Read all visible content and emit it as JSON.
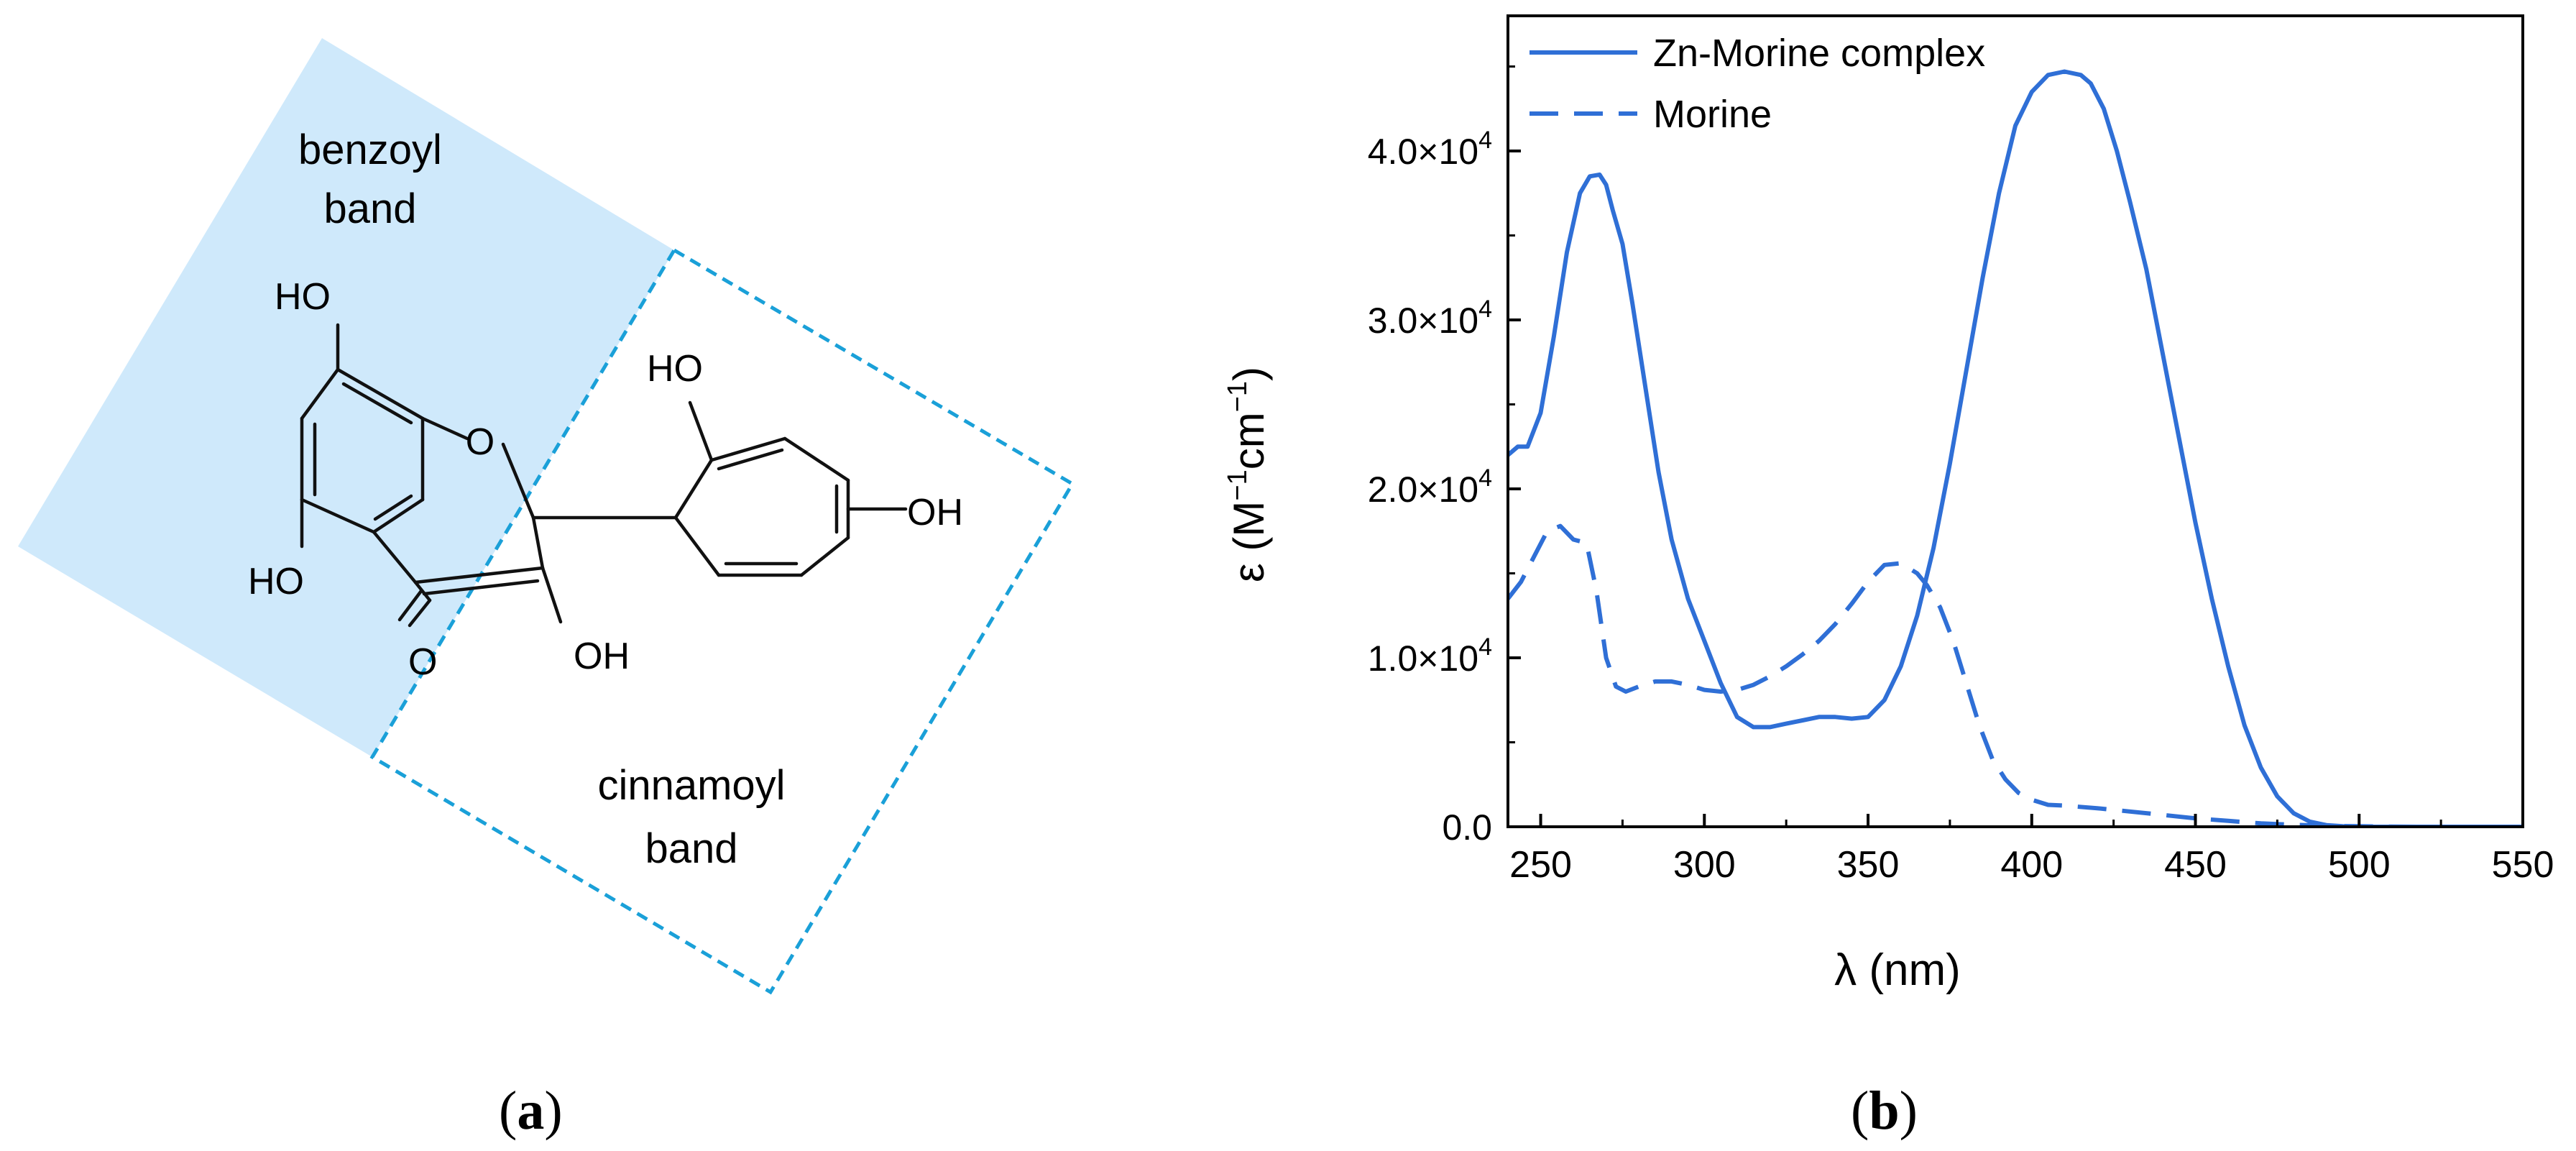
{
  "panel_a": {
    "label_open": "(",
    "label_letter": "a",
    "label_close": ")",
    "region_top_line1": "benzoyl",
    "region_top_line2": "band",
    "region_bottom_line1": "cinnamoyl",
    "region_bottom_line2": "band",
    "atoms": {
      "ho_top": "HO",
      "ho_left": "HO",
      "o_ring": "O",
      "o_carbonyl": "O",
      "oh_3": "OH",
      "ho_2p": "HO",
      "oh_4p": "OH"
    },
    "colors": {
      "benzoyl_fill": "#cfe9fb",
      "cinnamoyl_dash": "#1aa0d8",
      "bond": "#111111"
    }
  },
  "panel_b": {
    "label_open": "(",
    "label_letter": "b",
    "label_close": ")",
    "colors": {
      "series": "#2f6fd6",
      "axis": "#000000"
    }
  },
  "chart_data": {
    "type": "line",
    "title": "",
    "xlabel": "λ (nm)",
    "ylabel_parts": {
      "sym": "ε",
      "open": " (M",
      "sup1": "−1",
      "mid": "cm",
      "sup2": "−1",
      "close": ")"
    },
    "xlim": [
      240,
      550
    ],
    "ylim": [
      0,
      48000
    ],
    "x_ticks": [
      250,
      300,
      350,
      400,
      450,
      500,
      550
    ],
    "y_ticks": [
      {
        "value": 0,
        "label": "0.0",
        "exp": ""
      },
      {
        "value": 10000,
        "label": "1.0×10",
        "exp": "4"
      },
      {
        "value": 20000,
        "label": "2.0×10",
        "exp": "4"
      },
      {
        "value": 30000,
        "label": "3.0×10",
        "exp": "4"
      },
      {
        "value": 40000,
        "label": "4.0×10",
        "exp": "4"
      }
    ],
    "legend_position": "top-left",
    "grid": false,
    "series": [
      {
        "name": "Zn-Morine complex",
        "style": "solid",
        "x": [
          240,
          243,
          246,
          250,
          254,
          258,
          262,
          265,
          268,
          270,
          272,
          275,
          278,
          282,
          286,
          290,
          295,
          300,
          305,
          310,
          315,
          320,
          325,
          330,
          335,
          340,
          345,
          350,
          355,
          360,
          365,
          370,
          375,
          380,
          385,
          390,
          395,
          400,
          405,
          410,
          415,
          418,
          422,
          426,
          430,
          435,
          440,
          445,
          450,
          455,
          460,
          465,
          470,
          475,
          480,
          485,
          490,
          495,
          500,
          510,
          520,
          530,
          540,
          550
        ],
        "y": [
          22000,
          22500,
          22500,
          24500,
          29000,
          34000,
          37500,
          38500,
          38600,
          38000,
          36500,
          34500,
          31000,
          26000,
          21000,
          17000,
          13500,
          11000,
          8500,
          6500,
          5900,
          5900,
          6100,
          6300,
          6500,
          6500,
          6400,
          6500,
          7500,
          9500,
          12500,
          16500,
          21500,
          27000,
          32500,
          37500,
          41500,
          43500,
          44500,
          44700,
          44500,
          44000,
          42500,
          40000,
          37000,
          33000,
          28000,
          23000,
          18000,
          13500,
          9500,
          6000,
          3500,
          1800,
          800,
          300,
          100,
          30,
          0,
          0,
          0,
          0,
          0,
          0
        ]
      },
      {
        "name": "Morine",
        "style": "dashed",
        "x": [
          240,
          244,
          248,
          252,
          256,
          260,
          264,
          267,
          270,
          273,
          276,
          280,
          285,
          290,
          295,
          300,
          305,
          310,
          315,
          320,
          325,
          330,
          335,
          340,
          345,
          350,
          355,
          360,
          365,
          368,
          372,
          376,
          380,
          384,
          388,
          392,
          396,
          400,
          405,
          410,
          420,
          430,
          440,
          450,
          460,
          470,
          480,
          490,
          500,
          510,
          520,
          530,
          540,
          550
        ],
        "y": [
          13500,
          14500,
          16000,
          17500,
          17800,
          17000,
          16800,
          14000,
          10000,
          8300,
          8000,
          8300,
          8600,
          8600,
          8400,
          8100,
          8000,
          8100,
          8400,
          8900,
          9500,
          10200,
          11000,
          12000,
          13200,
          14500,
          15500,
          15600,
          15000,
          14300,
          13000,
          11000,
          8500,
          6000,
          4000,
          2800,
          2000,
          1600,
          1300,
          1250,
          1100,
          900,
          700,
          500,
          350,
          200,
          120,
          60,
          30,
          10,
          0,
          0,
          0,
          0
        ]
      }
    ]
  }
}
